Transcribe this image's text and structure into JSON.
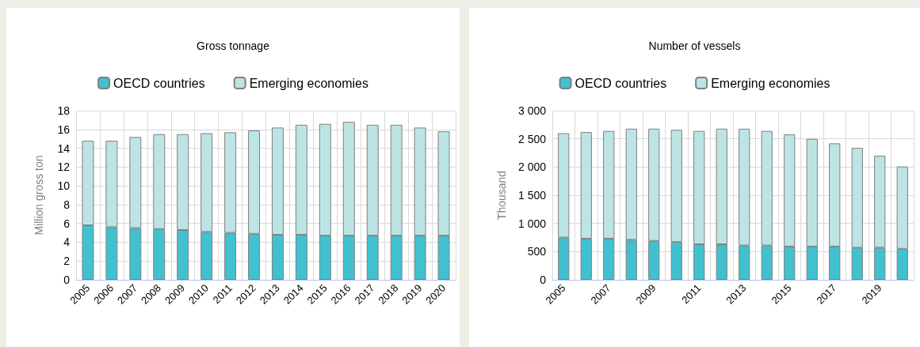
{
  "chart_data": [
    {
      "type": "bar",
      "title": "Gross tonnage",
      "ylabel": "Million gross ton",
      "stacked": true,
      "legend": "top",
      "grid": true,
      "categories": [
        "2005",
        "2006",
        "2007",
        "2008",
        "2009",
        "2010",
        "2011",
        "2012",
        "2013",
        "2014",
        "2015",
        "2016",
        "2017",
        "2018",
        "2019",
        "2020"
      ],
      "series": [
        {
          "name": "OECD countries",
          "color": "#41c1cf",
          "values": [
            5.8,
            5.6,
            5.5,
            5.4,
            5.3,
            5.1,
            5.0,
            4.9,
            4.8,
            4.8,
            4.7,
            4.7,
            4.7,
            4.7,
            4.7,
            4.7
          ]
        },
        {
          "name": "Emerging economies",
          "color": "#bde4e4",
          "values": [
            9.0,
            9.2,
            9.7,
            10.1,
            10.2,
            10.5,
            10.7,
            11.0,
            11.4,
            11.7,
            11.9,
            12.1,
            11.8,
            11.8,
            11.5,
            11.1
          ]
        }
      ],
      "ylim": [
        0,
        18
      ],
      "yticks": [
        0,
        2,
        4,
        6,
        8,
        10,
        12,
        14,
        16,
        18
      ]
    },
    {
      "type": "bar",
      "title": "Number of vessels",
      "ylabel": "Thousand",
      "stacked": true,
      "legend": "top",
      "grid": true,
      "categories": [
        "2005",
        null,
        "2007",
        null,
        "2009",
        null,
        "2011",
        null,
        "2013",
        null,
        "2015",
        null,
        "2017",
        null,
        "2019",
        null
      ],
      "series": [
        {
          "name": "OECD countries",
          "color": "#41c1cf",
          "values": [
            750,
            730,
            730,
            710,
            690,
            670,
            630,
            630,
            610,
            610,
            590,
            590,
            590,
            570,
            570,
            550
          ]
        },
        {
          "name": "Emerging economies",
          "color": "#bde4e4",
          "values": [
            1850,
            1890,
            1910,
            1970,
            1990,
            1990,
            2010,
            2050,
            2070,
            2030,
            1990,
            1910,
            1830,
            1770,
            1630,
            1460
          ]
        }
      ],
      "ylim": [
        0,
        3000
      ],
      "yticks": [
        0,
        {
          "value": 500,
          "label": "500"
        },
        {
          "value": 1000,
          "label": "1 000"
        },
        {
          "value": 1500,
          "label": "1 500"
        },
        {
          "value": 2000,
          "label": "2 000"
        },
        {
          "value": 2500,
          "label": "2 500"
        },
        {
          "value": 3000,
          "label": "3 000"
        }
      ]
    }
  ]
}
